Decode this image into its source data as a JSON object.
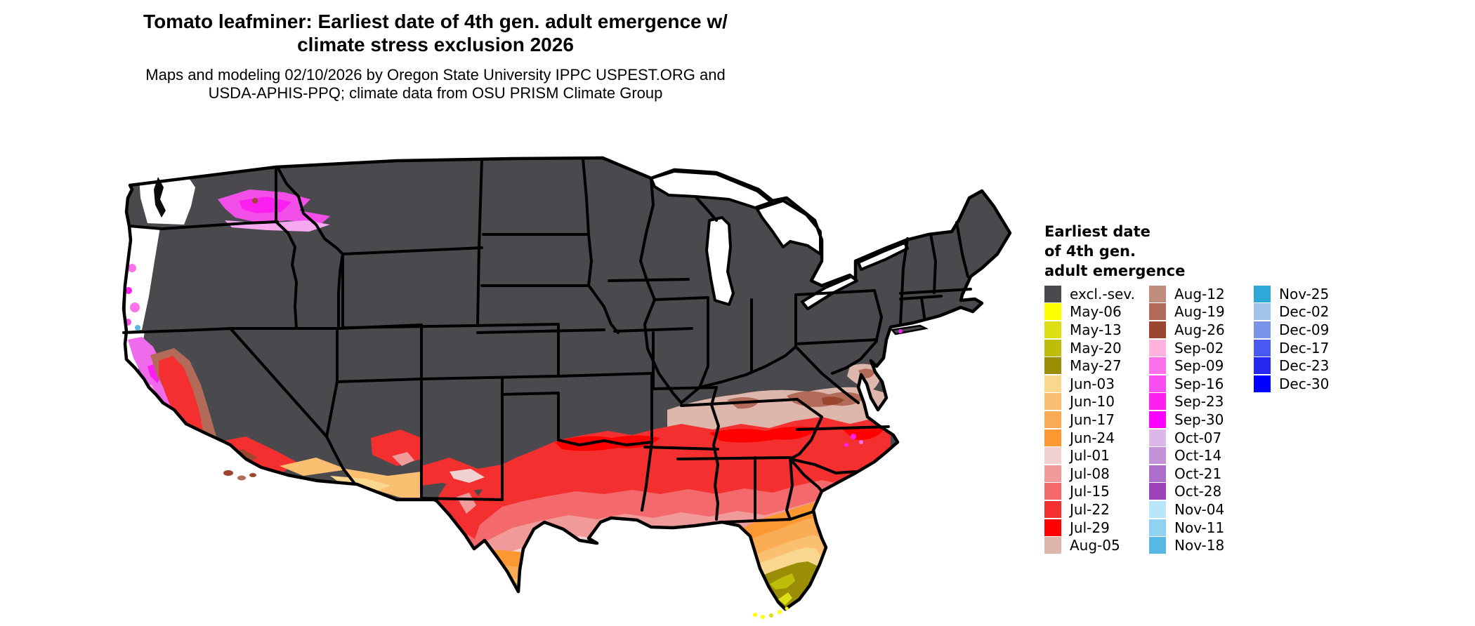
{
  "title": {
    "line1": "Tomato leafminer: Earliest date of 4th gen. adult emergence w/",
    "line2": "climate stress exclusion 2026"
  },
  "subtitle": {
    "line1": "Maps and modeling 02/10/2026 by Oregon State University IPPC USPEST.ORG and",
    "line2": "USDA-APHIS-PPQ; climate data from OSU PRISM Climate Group"
  },
  "legend": {
    "title_lines": [
      "Earliest date",
      "of 4th gen.",
      "adult emergence"
    ],
    "columns": [
      [
        {
          "label": "excl.-sev.",
          "color": "#4A4A4E"
        },
        {
          "label": "May-06",
          "color": "#FFFF00"
        },
        {
          "label": "May-13",
          "color": "#DEDE14"
        },
        {
          "label": "May-20",
          "color": "#BDBD0A"
        },
        {
          "label": "May-27",
          "color": "#9A8E07"
        },
        {
          "label": "Jun-03",
          "color": "#FAD78F"
        },
        {
          "label": "Jun-10",
          "color": "#FBBF71"
        },
        {
          "label": "Jun-17",
          "color": "#FAAC55"
        },
        {
          "label": "Jun-24",
          "color": "#FB9832"
        },
        {
          "label": "Jul-01",
          "color": "#F2D2D0"
        },
        {
          "label": "Jul-08",
          "color": "#F09A9A"
        },
        {
          "label": "Jul-15",
          "color": "#F4696B"
        },
        {
          "label": "Jul-22",
          "color": "#F3302F"
        },
        {
          "label": "Jul-29",
          "color": "#FE0000"
        },
        {
          "label": "Aug-05",
          "color": "#DDB6AC"
        }
      ],
      [
        {
          "label": "Aug-12",
          "color": "#C08E7F"
        },
        {
          "label": "Aug-19",
          "color": "#B26B58"
        },
        {
          "label": "Aug-26",
          "color": "#9B4730"
        },
        {
          "label": "Sep-02",
          "color": "#FFB3DC"
        },
        {
          "label": "Sep-09",
          "color": "#FC72EC"
        },
        {
          "label": "Sep-16",
          "color": "#FA4FF0"
        },
        {
          "label": "Sep-23",
          "color": "#FB20F0"
        },
        {
          "label": "Sep-30",
          "color": "#FE00FE"
        },
        {
          "label": "Oct-07",
          "color": "#DCB8E8"
        },
        {
          "label": "Oct-14",
          "color": "#C492D6"
        },
        {
          "label": "Oct-21",
          "color": "#AC6EC8"
        },
        {
          "label": "Oct-28",
          "color": "#9A44B8"
        },
        {
          "label": "Nov-04",
          "color": "#B8E6F8"
        },
        {
          "label": "Nov-11",
          "color": "#90D2F0"
        },
        {
          "label": "Nov-18",
          "color": "#58B8E4"
        }
      ],
      [
        {
          "label": "Nov-25",
          "color": "#2FA8D8"
        },
        {
          "label": "Dec-02",
          "color": "#A0C4E8"
        },
        {
          "label": "Dec-09",
          "color": "#7894E8"
        },
        {
          "label": "Dec-17",
          "color": "#4858F0"
        },
        {
          "label": "Dec-23",
          "color": "#2428F0"
        },
        {
          "label": "Dec-30",
          "color": "#0000FE"
        }
      ]
    ]
  },
  "map": {
    "description": "Contiguous United States choropleth of earliest 4th generation adult emergence date",
    "excluded_color": "#4A4A4E",
    "no_data_color": "#FFFFFF",
    "state_border_color": "#000000",
    "background": "#FFFFFF"
  }
}
